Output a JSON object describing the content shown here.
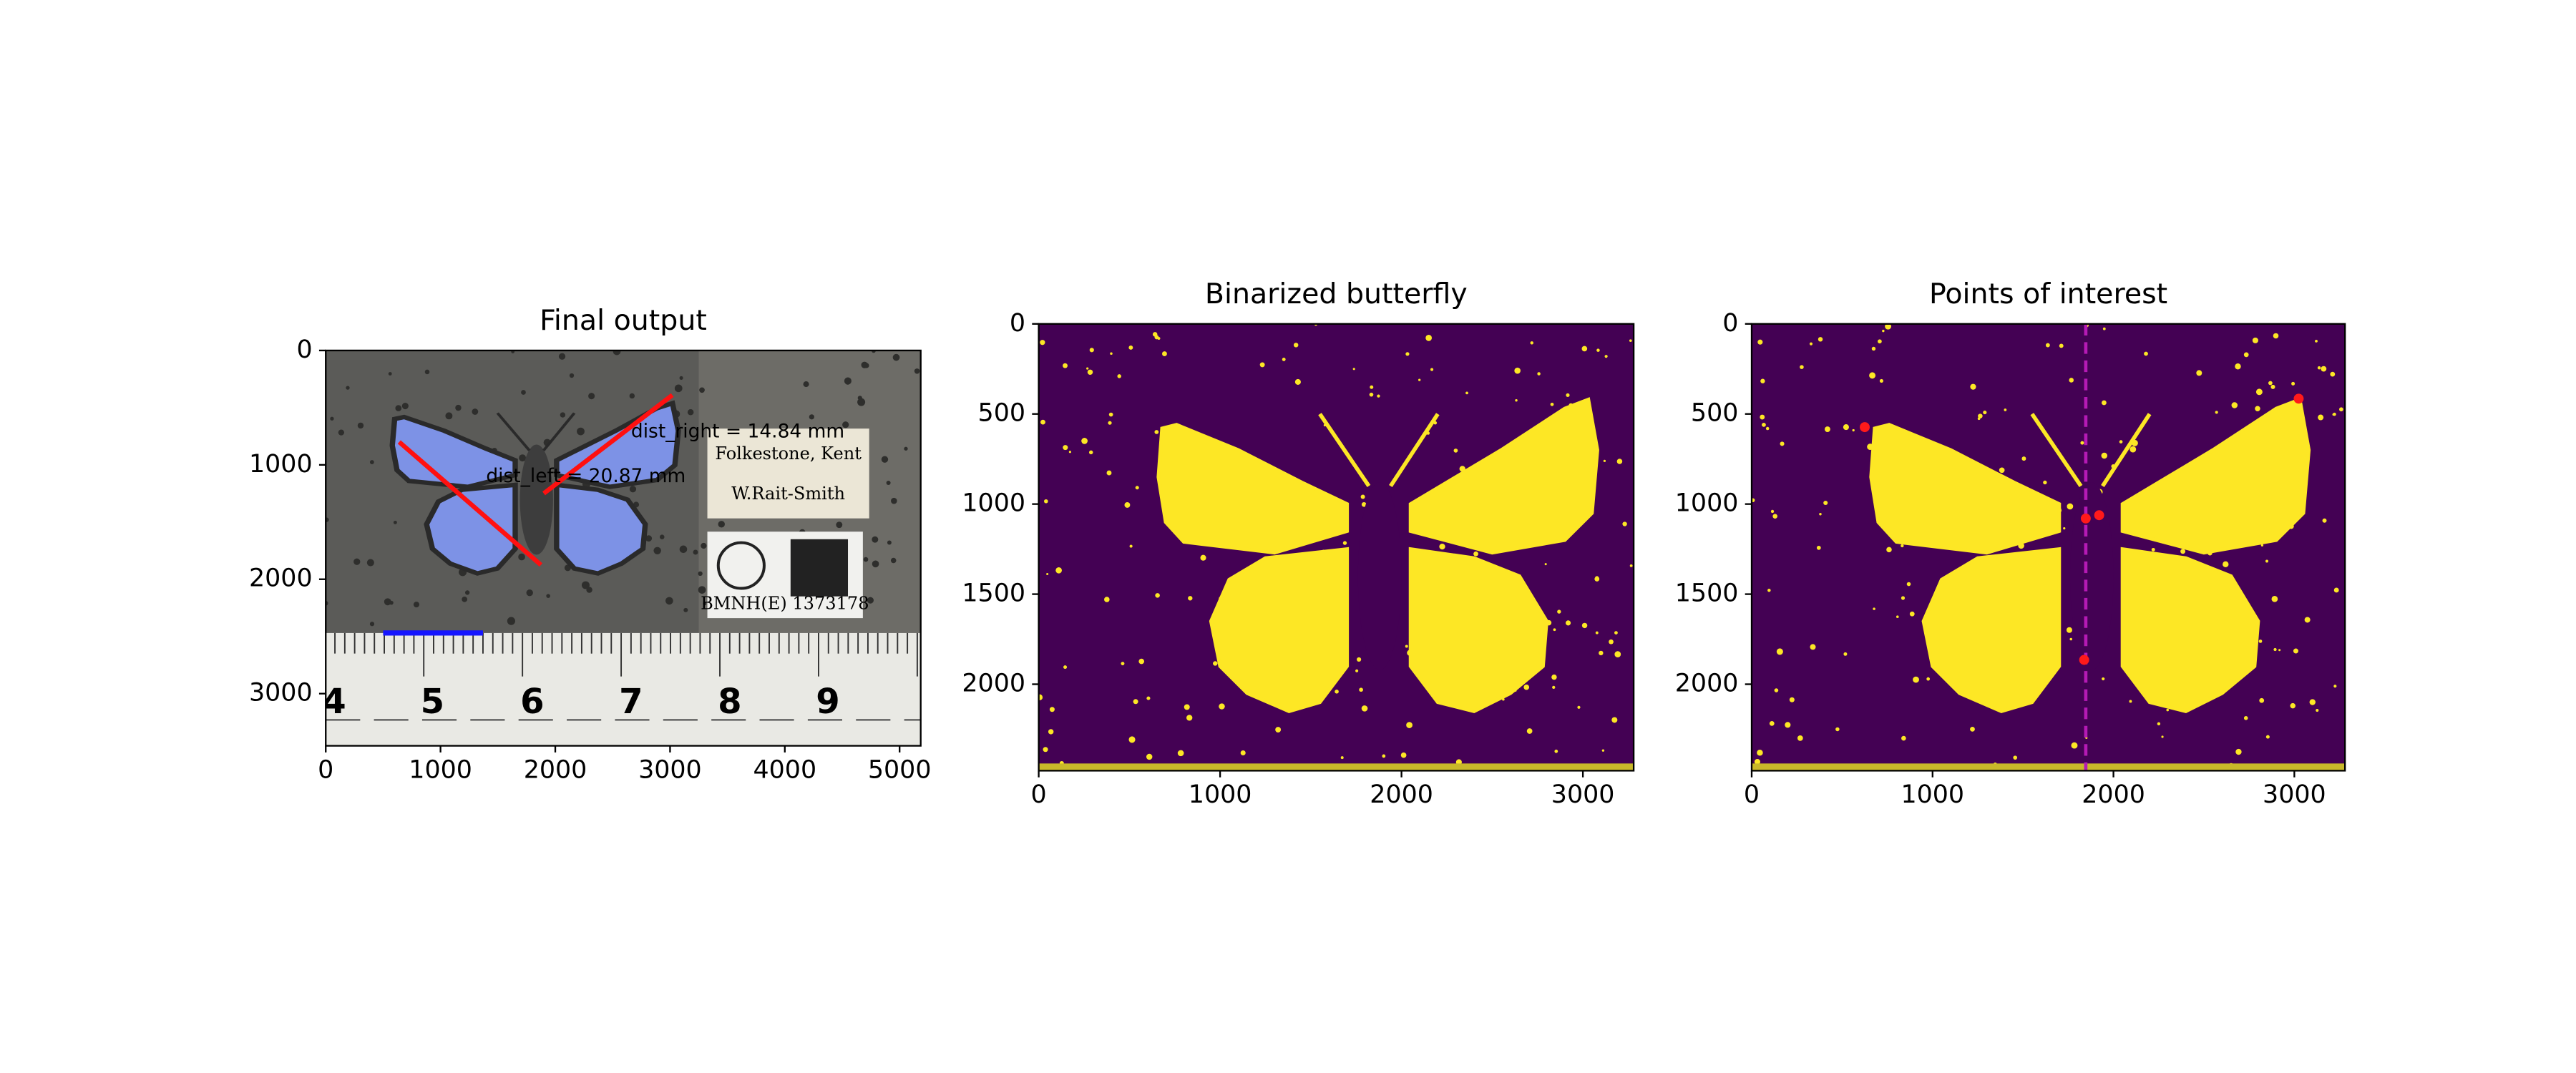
{
  "chart_data": [
    {
      "type": "image",
      "title": "Final output",
      "xlim": [
        0,
        5184
      ],
      "ylim": [
        3456,
        0
      ],
      "xticks": [
        0,
        1000,
        2000,
        3000,
        4000,
        5000
      ],
      "yticks": [
        0,
        1000,
        2000,
        3000
      ],
      "annotations": [
        {
          "text": "dist_right = 14.84 mm",
          "x": 3590,
          "y": 712
        },
        {
          "text": "dist_left = 20.87 mm",
          "x": 2267,
          "y": 1105
        }
      ],
      "annotation_color": "#e8242a",
      "label_texts": [
        "Folkestone, Kent",
        "W.Rait-Smith",
        "BMNH(E) 1373178"
      ],
      "ruler_numbers": [
        4,
        5,
        6,
        7,
        8,
        9
      ]
    },
    {
      "type": "image",
      "title": "Binarized butterfly",
      "xlim": [
        0,
        3280
      ],
      "ylim": [
        2480,
        0
      ],
      "xticks": [
        0,
        1000,
        2000,
        3000
      ],
      "yticks": [
        0,
        500,
        1000,
        1500,
        2000
      ]
    },
    {
      "type": "image",
      "title": "Points of interest",
      "xlim": [
        0,
        3280
      ],
      "ylim": [
        2480,
        0
      ],
      "xticks": [
        0,
        1000,
        2000,
        3000
      ],
      "yticks": [
        0,
        500,
        1000,
        1500,
        2000
      ],
      "points": {
        "x": [
          625,
          3024,
          1921,
          1847,
          1838
        ],
        "y": [
          573,
          415,
          1062,
          1080,
          1865
        ],
        "color": "#ff1a1a"
      },
      "vline": {
        "x": 1847,
        "color": "#b51ab5"
      }
    }
  ]
}
